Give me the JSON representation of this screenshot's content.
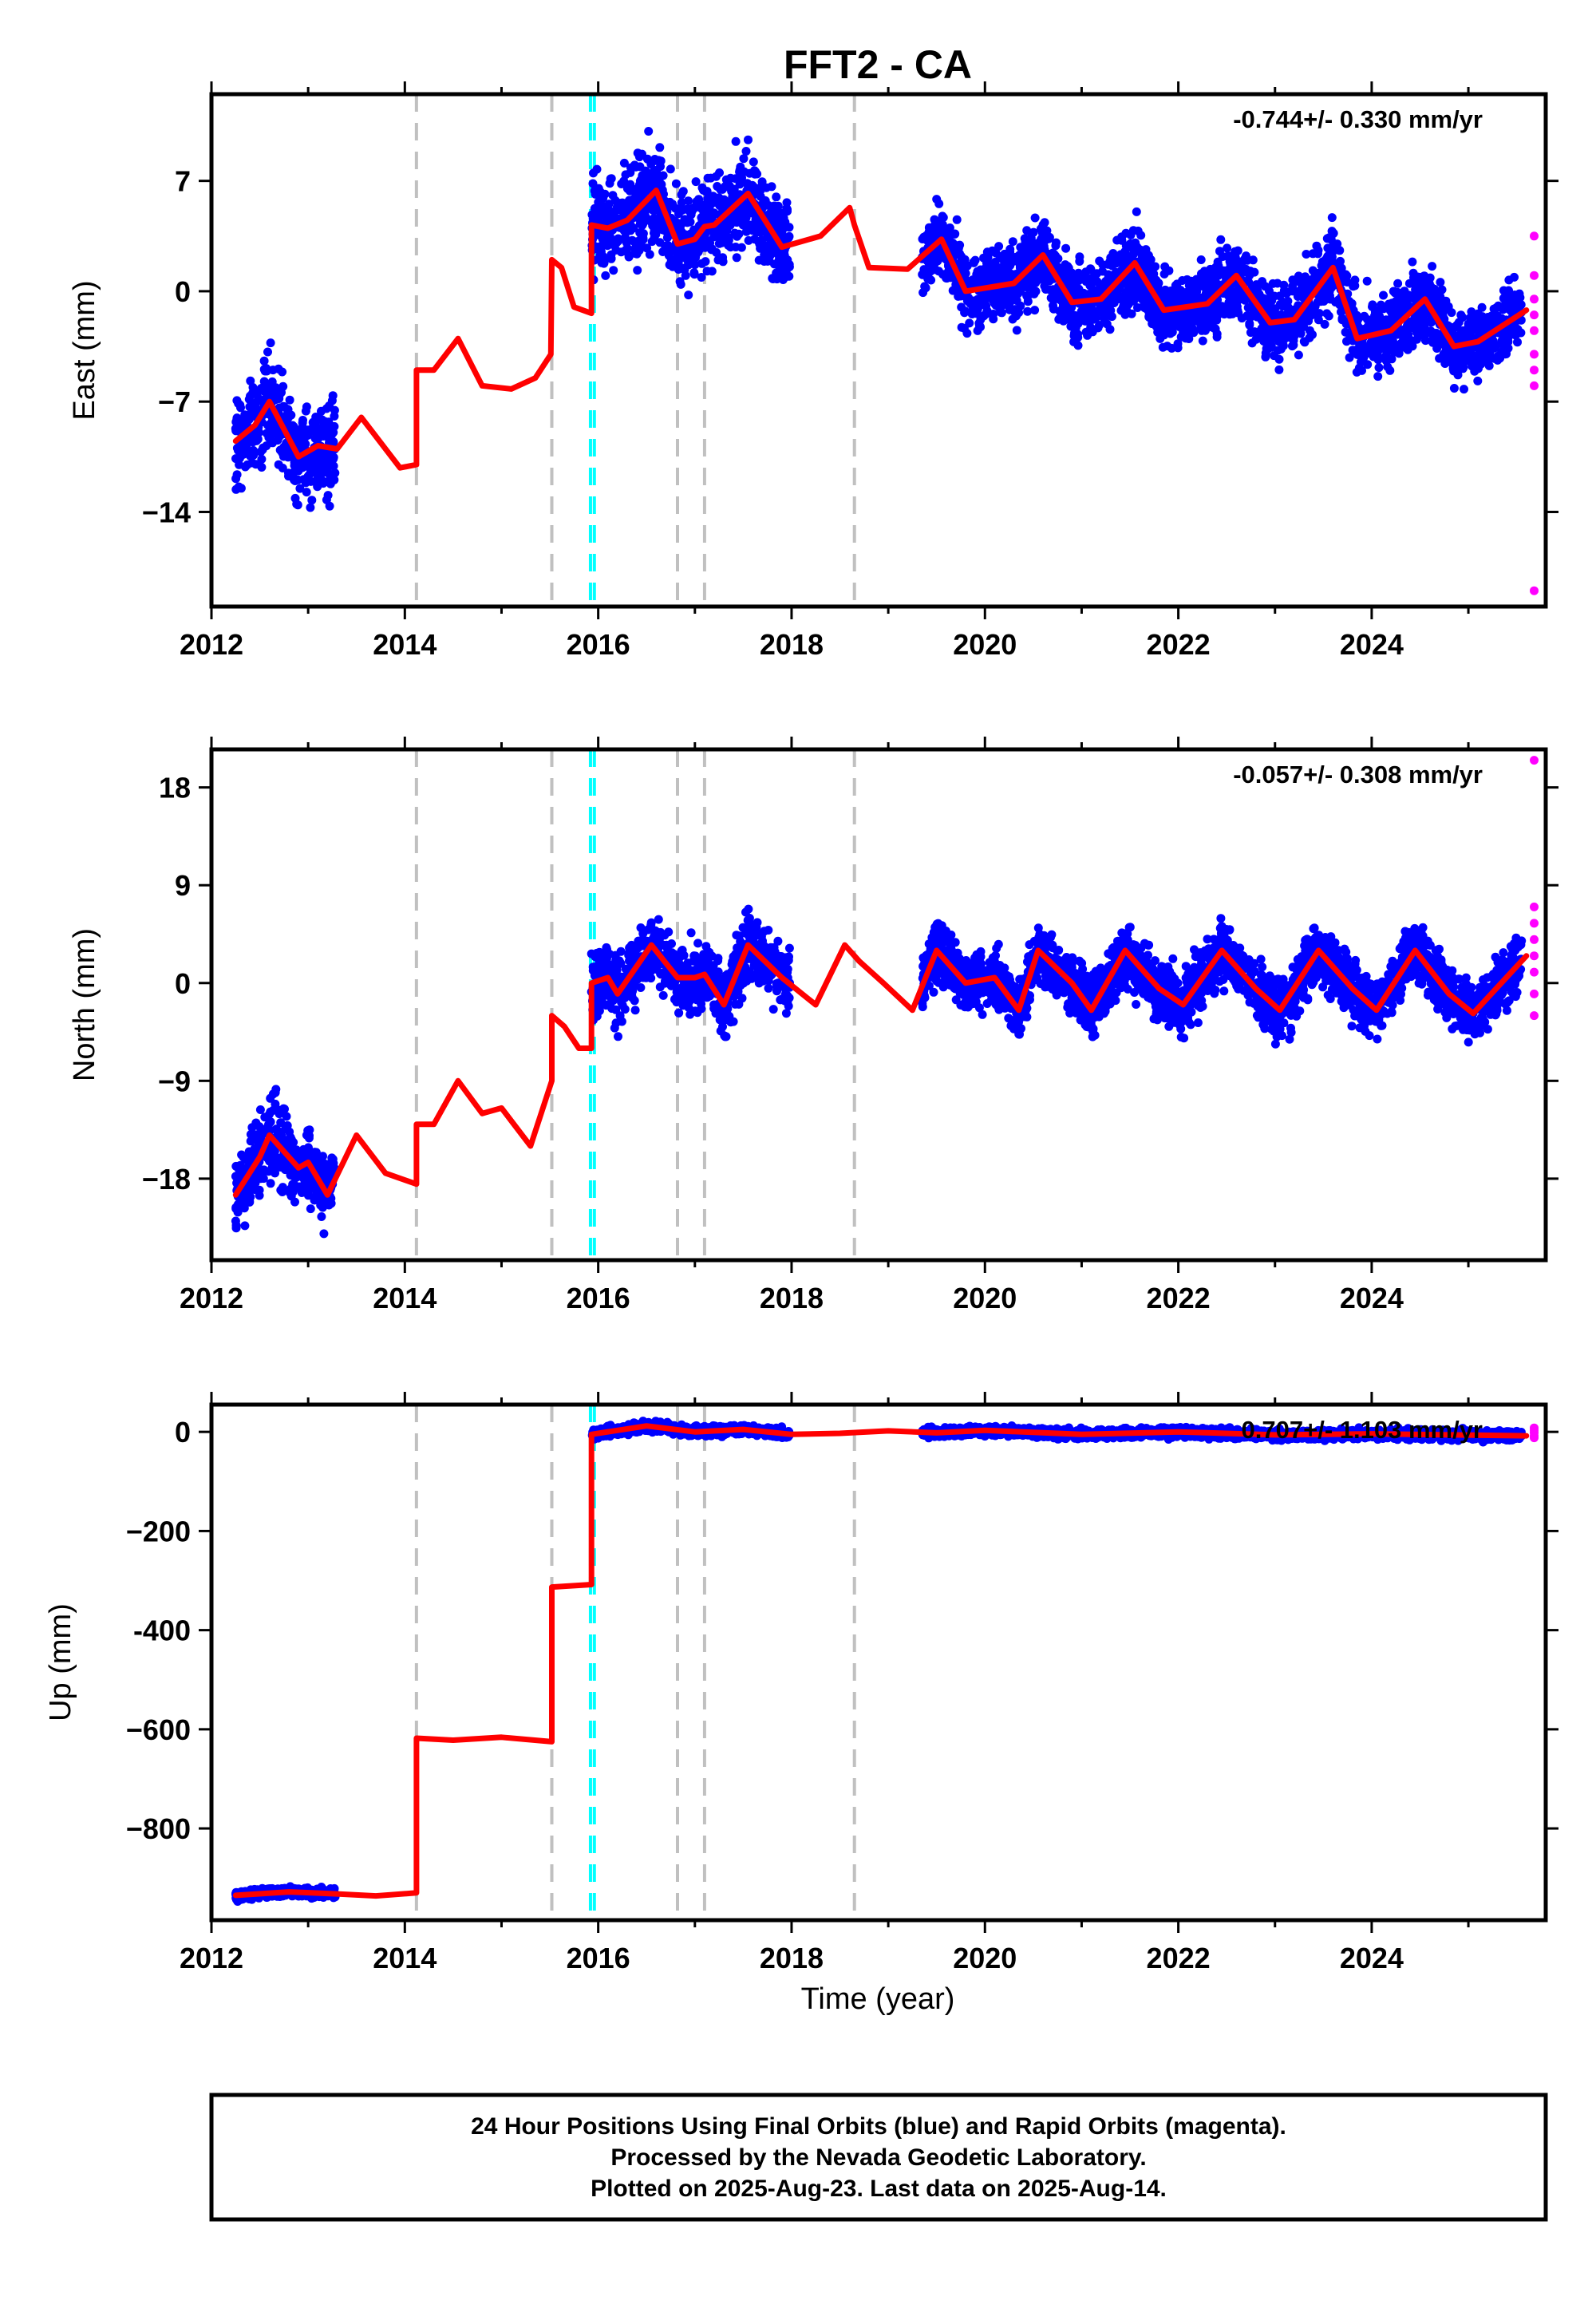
{
  "chart_data": {
    "type": "scatter",
    "title": "FFT2 - CA",
    "xlabel": "Time (year)",
    "xlim": [
      2012.0,
      2025.8
    ],
    "x_ticks": [
      2012,
      2014,
      2016,
      2018,
      2020,
      2022,
      2024
    ],
    "x_tick_labels": [
      "2012",
      "2014",
      "2016",
      "2018",
      "2020",
      "2022",
      "2024"
    ],
    "grid": false,
    "series_colors": {
      "final_orbits": "#0000ff",
      "rapid_orbits": "#ff00ff",
      "model": "#ff0000",
      "equipment_change": "#c0c0c0",
      "earthquake": "#00ffff"
    },
    "event_lines": {
      "gray_dashed": [
        2014.12,
        2015.52,
        2016.82,
        2017.1,
        2018.65
      ],
      "cyan_dashed": [
        2015.92,
        2015.96
      ]
    },
    "panels": [
      {
        "name": "east",
        "ylabel": "East (mm)",
        "ylim": [
          -20.0,
          12.5
        ],
        "y_ticks": [
          7,
          0,
          -7,
          -14
        ],
        "y_tick_labels": [
          "7",
          "0",
          "−7",
          "−14"
        ],
        "rate_label": "-0.744+/- 0.330 mm/yr",
        "model_x": [
          2012.25,
          2012.45,
          2012.6,
          2012.9,
          2013.1,
          2013.3,
          2013.55,
          2013.95,
          2014.12,
          2014.12,
          2014.3,
          2014.55,
          2014.8,
          2015.1,
          2015.35,
          2015.51,
          2015.52,
          2015.62,
          2015.75,
          2015.93,
          2015.93,
          2016.1,
          2016.3,
          2016.6,
          2016.82,
          2017.0,
          2017.1,
          2017.2,
          2017.55,
          2017.9,
          2018.3,
          2018.6,
          2018.65,
          2018.8,
          2019.2,
          2019.55,
          2019.8,
          2020.3,
          2020.6,
          2020.9,
          2021.2,
          2021.55,
          2021.85,
          2022.3,
          2022.6,
          2022.95,
          2023.2,
          2023.6,
          2023.85,
          2024.2,
          2024.55,
          2024.85,
          2025.1,
          2025.6
        ],
        "model_y": [
          -9.5,
          -8.5,
          -7.0,
          -10.5,
          -9.8,
          -10.0,
          -8.0,
          -11.2,
          -11.0,
          -5.0,
          -5.0,
          -3.0,
          -6.0,
          -6.2,
          -5.5,
          -4.0,
          2.0,
          1.5,
          -1.0,
          -1.4,
          4.2,
          4.0,
          4.5,
          6.4,
          3.0,
          3.3,
          4.1,
          4.2,
          6.2,
          2.8,
          3.5,
          5.3,
          4.2,
          1.5,
          1.4,
          3.3,
          0.0,
          0.5,
          2.3,
          -0.7,
          -0.5,
          1.8,
          -1.2,
          -0.8,
          1.0,
          -2.0,
          -1.8,
          1.5,
          -3.0,
          -2.5,
          -0.5,
          -3.5,
          -3.2,
          -1.2
        ],
        "final_obs_segments": [
          [
            2012.25,
            2013.28
          ],
          [
            2015.93,
            2017.98
          ],
          [
            2019.35,
            2025.55
          ]
        ],
        "final_obs_band": [
          [
            -9.0,
            3.8
          ],
          [
            4.3,
            3.8
          ],
          [
            0.0,
            3.0
          ]
        ],
        "rapid_obs_y": [
          3.5,
          1.0,
          -0.5,
          -1.5,
          -2.5,
          -4.0,
          -5.0,
          -6.0,
          -19.0
        ]
      },
      {
        "name": "north",
        "ylabel": "North (mm)",
        "ylim": [
          -25.5,
          21.5
        ],
        "y_ticks": [
          18,
          9,
          0,
          -9,
          -18
        ],
        "y_tick_labels": [
          "18",
          "9",
          "0",
          "−9",
          "−18"
        ],
        "rate_label": "-0.057+/- 0.308 mm/yr",
        "model_x": [
          2012.25,
          2012.5,
          2012.6,
          2012.9,
          2013.0,
          2013.2,
          2013.5,
          2013.8,
          2014.12,
          2014.12,
          2014.3,
          2014.55,
          2014.8,
          2015.0,
          2015.3,
          2015.52,
          2015.52,
          2015.65,
          2015.8,
          2015.93,
          2015.93,
          2016.1,
          2016.2,
          2016.55,
          2016.82,
          2017.0,
          2017.1,
          2017.3,
          2017.55,
          2017.9,
          2018.25,
          2018.55,
          2018.7,
          2018.95,
          2019.25,
          2019.5,
          2019.8,
          2020.1,
          2020.35,
          2020.55,
          2020.9,
          2021.1,
          2021.45,
          2021.8,
          2022.05,
          2022.45,
          2022.8,
          2023.05,
          2023.45,
          2023.8,
          2024.05,
          2024.45,
          2024.8,
          2025.05,
          2025.6
        ],
        "model_y": [
          -19.5,
          -16.0,
          -14.0,
          -17.0,
          -16.5,
          -19.5,
          -14.0,
          -17.5,
          -18.5,
          -13.0,
          -13.0,
          -9.0,
          -12.0,
          -11.5,
          -15.0,
          -9.0,
          -3.0,
          -4.0,
          -6.0,
          -6.0,
          0.0,
          0.5,
          -1.0,
          3.5,
          0.5,
          0.5,
          0.8,
          -2.0,
          3.5,
          0.5,
          -2.0,
          3.5,
          2.0,
          0.0,
          -2.5,
          3.0,
          0.0,
          0.5,
          -2.5,
          3.0,
          0.0,
          -2.5,
          3.0,
          -0.5,
          -2.0,
          3.0,
          -0.5,
          -2.5,
          3.0,
          -0.5,
          -2.5,
          3.0,
          -1.0,
          -2.8,
          2.5
        ],
        "final_obs_segments": [
          [
            2012.25,
            2013.28
          ],
          [
            2015.93,
            2017.98
          ],
          [
            2019.35,
            2025.55
          ]
        ],
        "final_obs_band": [
          [
            -16.0,
            4.5
          ],
          [
            0.5,
            4.0
          ],
          [
            0.3,
            3.5
          ]
        ],
        "rapid_obs_y": [
          20.5,
          7.0,
          5.5,
          4.0,
          2.5,
          1.0,
          -1.0,
          -3.0
        ]
      },
      {
        "name": "up",
        "ylabel": "Up (mm)",
        "ylim": [
          -985,
          55
        ],
        "y_ticks": [
          0,
          -200,
          -400,
          -600,
          -800
        ],
        "y_tick_labels": [
          "0",
          "−200",
          "-400",
          "−600",
          "−800"
        ],
        "rate_label": "0.707+/- 1.103 mm/yr",
        "model_x": [
          2012.25,
          2012.8,
          2013.3,
          2013.7,
          2014.12,
          2014.12,
          2014.5,
          2015.0,
          2015.52,
          2015.52,
          2015.93,
          2015.93,
          2016.5,
          2017.0,
          2017.5,
          2018.0,
          2018.5,
          2019.0,
          2019.5,
          2020.0,
          2021.0,
          2022.0,
          2023.0,
          2024.0,
          2025.6
        ],
        "model_y": [
          -935,
          -928,
          -932,
          -936,
          -930,
          -618,
          -622,
          -616,
          -625,
          -313,
          -308,
          -5,
          12,
          0,
          5,
          -5,
          -3,
          2,
          -2,
          3,
          -5,
          0,
          -6,
          -4,
          -8
        ],
        "final_obs_segments": [
          [
            2012.25,
            2013.28
          ],
          [
            2015.93,
            2017.98
          ],
          [
            2019.35,
            2025.55
          ]
        ],
        "final_obs_band": [
          [
            -930,
            12
          ],
          [
            2,
            12
          ],
          [
            -2,
            12
          ]
        ],
        "rapid_obs_y": [
          8,
          3,
          -2,
          -8,
          -12
        ]
      }
    ]
  },
  "footer": {
    "line1": "24 Hour Positions Using Final Orbits (blue) and Rapid Orbits (magenta).",
    "line2": "Processed by the Nevada Geodetic Laboratory.",
    "line3": "Plotted on 2025-Aug-23. Last data on 2025-Aug-14."
  }
}
